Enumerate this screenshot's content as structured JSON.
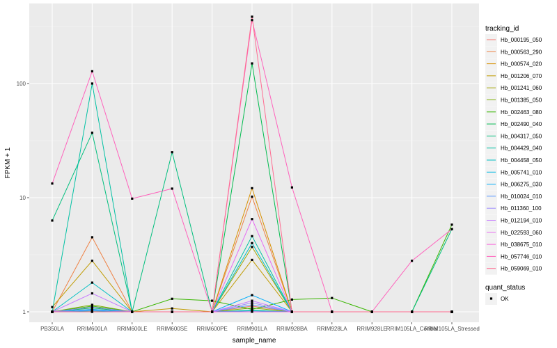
{
  "chart_data": {
    "type": "line",
    "title": "",
    "xlabel": "sample_name",
    "ylabel": "FPKM + 1",
    "y_scale": "log10",
    "ylim": [
      0.9,
      500
    ],
    "y_ticks": [
      1,
      10,
      100
    ],
    "y_tick_labels": [
      "1",
      "10",
      "100"
    ],
    "grid": true,
    "legend_position": "right",
    "categories": [
      "PB350LA",
      "RRIM600LA",
      "RRIM600LE",
      "RRIM600SE",
      "RRIM600PE",
      "RRIM901LA",
      "RRIM928BA",
      "RRIM928LA",
      "RRIM928LE",
      "RRIM105LA_Control",
      "RRIM105LA_Stressed"
    ],
    "legend_title": "tracking_id",
    "series": [
      {
        "name": "Hb_000195_050",
        "color": "#F8766D",
        "values": [
          1,
          1.05,
          1,
          1,
          1,
          1.12,
          1,
          1,
          1,
          1,
          1
        ]
      },
      {
        "name": "Hb_000563_290",
        "color": "#EE8043",
        "values": [
          1,
          4.5,
          1,
          1,
          1,
          10.2,
          1,
          1,
          1,
          1,
          1
        ]
      },
      {
        "name": "Hb_000574_020",
        "color": "#D89000",
        "values": [
          1,
          1.03,
          1,
          1,
          1,
          12.1,
          1,
          1,
          1,
          1,
          1
        ]
      },
      {
        "name": "Hb_001206_070",
        "color": "#C09B00",
        "values": [
          1.1,
          2.8,
          1,
          1.07,
          1,
          2.85,
          1,
          1,
          1,
          1,
          1
        ]
      },
      {
        "name": "Hb_001241_060",
        "color": "#A3A500",
        "values": [
          1,
          1.02,
          1,
          1,
          1,
          3.7,
          1,
          1,
          1,
          1,
          1
        ]
      },
      {
        "name": "Hb_001385_050",
        "color": "#7CAE00",
        "values": [
          1,
          1.15,
          1,
          1,
          1,
          1.08,
          1,
          1,
          1,
          1,
          1
        ]
      },
      {
        "name": "Hb_002463_080",
        "color": "#39B600",
        "values": [
          1,
          1.12,
          1,
          1.3,
          1.25,
          1.05,
          1.28,
          1.32,
          1,
          1,
          5.8
        ]
      },
      {
        "name": "Hb_002490_040",
        "color": "#00BB4E",
        "values": [
          1,
          1.08,
          1,
          1,
          1,
          150,
          1,
          1,
          1,
          1,
          1
        ]
      },
      {
        "name": "Hb_004317_050",
        "color": "#00BF7D",
        "values": [
          6.3,
          37,
          1,
          25,
          1,
          1.03,
          1,
          1,
          1,
          1,
          5.3
        ]
      },
      {
        "name": "Hb_004429_040",
        "color": "#00C1A3",
        "values": [
          1,
          100,
          1,
          1,
          1,
          4.6,
          1,
          1,
          1,
          1,
          1
        ]
      },
      {
        "name": "Hb_004458_050",
        "color": "#00BFC4",
        "values": [
          1,
          1.8,
          1,
          1,
          1,
          4.0,
          1,
          1,
          1,
          1,
          1
        ]
      },
      {
        "name": "Hb_005741_010",
        "color": "#00B9E3",
        "values": [
          1,
          1.02,
          1,
          1,
          1,
          1.02,
          1,
          1,
          1,
          1,
          1
        ]
      },
      {
        "name": "Hb_006275_030",
        "color": "#00ADFA",
        "values": [
          1,
          1.05,
          1,
          1,
          1,
          1.4,
          1,
          1,
          1,
          1,
          1
        ]
      },
      {
        "name": "Hb_010024_010",
        "color": "#619CFF",
        "values": [
          1,
          1.03,
          1,
          1,
          1,
          1.15,
          1,
          1,
          1,
          1,
          1
        ]
      },
      {
        "name": "Hb_011360_100",
        "color": "#9E8CFF",
        "values": [
          1,
          1.1,
          1,
          1,
          1,
          1.2,
          1,
          1,
          1,
          1,
          1
        ]
      },
      {
        "name": "Hb_012194_010",
        "color": "#C77CFF",
        "values": [
          1,
          1.45,
          1,
          1,
          1,
          1.25,
          1,
          1,
          1,
          1,
          1
        ]
      },
      {
        "name": "Hb_022593_060",
        "color": "#E76BF3",
        "values": [
          1,
          1.0,
          1,
          1,
          1,
          6.5,
          1,
          1,
          1,
          1,
          1
        ]
      },
      {
        "name": "Hb_038675_010",
        "color": "#FA62DB",
        "values": [
          1,
          1.0,
          1,
          1,
          1,
          1.0,
          1,
          1,
          1,
          1,
          1
        ]
      },
      {
        "name": "Hb_057746_010",
        "color": "#FF62BC",
        "values": [
          13.3,
          128,
          9.8,
          12,
          1,
          360,
          12.3,
          1,
          1,
          2.8,
          5.3
        ]
      },
      {
        "name": "Hb_059069_010",
        "color": "#FF6C91",
        "values": [
          1,
          1.0,
          1,
          1,
          1,
          385,
          1,
          1,
          1,
          1,
          1
        ]
      }
    ],
    "shape_legend_title": "quant_status",
    "shape_legend_items": [
      "OK"
    ]
  }
}
